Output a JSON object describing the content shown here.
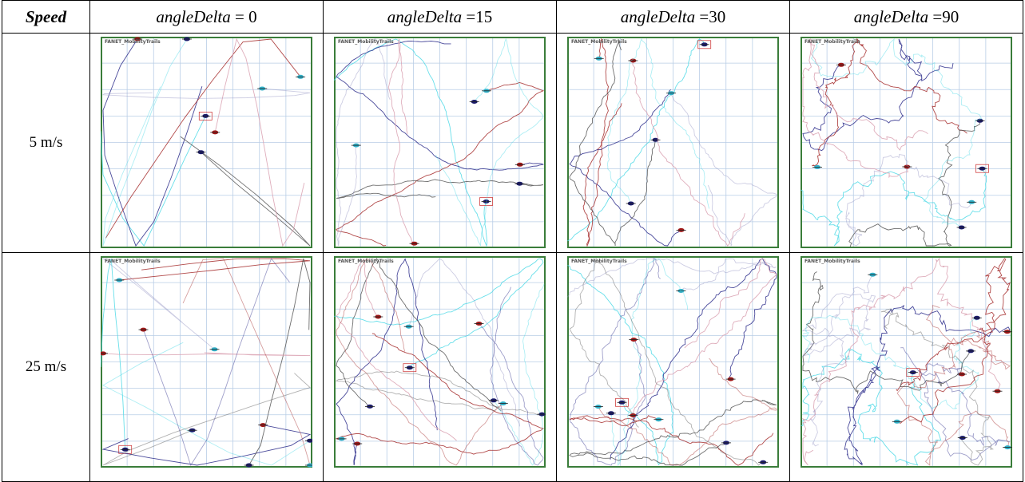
{
  "table": {
    "header": [
      {
        "name": "Speed"
      },
      {
        "name": "angleDelta",
        "eq": " = 0"
      },
      {
        "name": "angleDelta",
        "eq": " =15"
      },
      {
        "name": "angleDelta",
        "eq": " =30"
      },
      {
        "name": "angleDelta",
        "eq": " =90"
      }
    ],
    "rows": [
      "5 m/s",
      "25 m/s"
    ],
    "panel_title": "FANET_MobilityTrails"
  }
}
